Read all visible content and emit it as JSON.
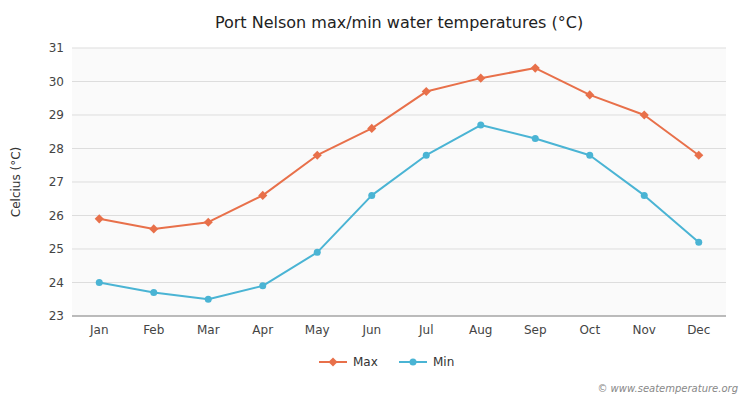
{
  "chart_data": {
    "type": "line",
    "title": "Port Nelson max/min water temperatures (°C)",
    "y_label": "Celcius (°C)",
    "categories": [
      "Jan",
      "Feb",
      "Mar",
      "Apr",
      "May",
      "Jun",
      "Jul",
      "Aug",
      "Sep",
      "Oct",
      "Nov",
      "Dec"
    ],
    "series": [
      {
        "name": "Max",
        "color": "#e8704a",
        "marker": "diamond",
        "values": [
          25.9,
          25.6,
          25.8,
          26.6,
          27.8,
          28.6,
          29.7,
          30.1,
          30.4,
          29.6,
          29.0,
          27.8
        ]
      },
      {
        "name": "Min",
        "color": "#4ab4d4",
        "marker": "circle",
        "values": [
          24.0,
          23.7,
          23.5,
          23.9,
          24.9,
          26.6,
          27.8,
          28.7,
          28.3,
          27.8,
          26.6,
          25.2
        ]
      }
    ],
    "ylim": [
      23,
      31
    ],
    "yticks": [
      23,
      24,
      25,
      26,
      27,
      28,
      29,
      30,
      31
    ],
    "grid": true,
    "legend": "bottom",
    "annotations": [
      "© www.seatemperature.org"
    ]
  }
}
